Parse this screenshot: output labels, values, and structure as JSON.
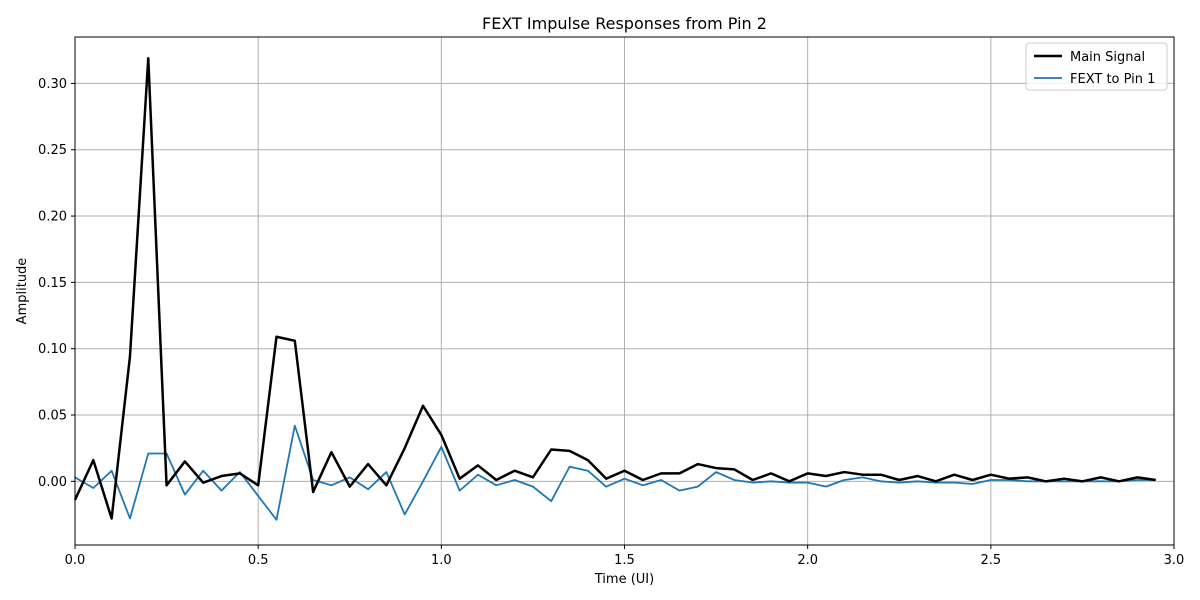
{
  "chart_data": {
    "type": "line",
    "title": "FEXT Impulse Responses from Pin 2",
    "xlabel": "Time (UI)",
    "ylabel": "Amplitude",
    "xlim": [
      0,
      3.0
    ],
    "ylim": [
      -0.048,
      0.335
    ],
    "x_ticks": [
      0.0,
      0.5,
      1.0,
      1.5,
      2.0,
      2.5,
      3.0
    ],
    "x_tick_labels": [
      "0.0",
      "0.5",
      "1.0",
      "1.5",
      "2.0",
      "2.5",
      "3.0"
    ],
    "y_ticks": [
      0.0,
      0.05,
      0.1,
      0.15,
      0.2,
      0.25,
      0.3
    ],
    "y_tick_labels": [
      "0.00",
      "0.05",
      "0.10",
      "0.15",
      "0.20",
      "0.25",
      "0.30"
    ],
    "grid": true,
    "legend_position": "top-right",
    "x": [
      0.0,
      0.05,
      0.1,
      0.15,
      0.2,
      0.25,
      0.3,
      0.35,
      0.4,
      0.45,
      0.5,
      0.55,
      0.6,
      0.65,
      0.7,
      0.75,
      0.8,
      0.85,
      0.9,
      0.95,
      1.0,
      1.05,
      1.1,
      1.15,
      1.2,
      1.25,
      1.3,
      1.35,
      1.4,
      1.45,
      1.5,
      1.55,
      1.6,
      1.65,
      1.7,
      1.75,
      1.8,
      1.85,
      1.9,
      1.95,
      2.0,
      2.05,
      2.1,
      2.15,
      2.2,
      2.25,
      2.3,
      2.35,
      2.4,
      2.45,
      2.5,
      2.55,
      2.6,
      2.65,
      2.7,
      2.75,
      2.8,
      2.85,
      2.9,
      2.95
    ],
    "series": [
      {
        "name": "Main Signal",
        "color": "#000000",
        "values": [
          -0.014,
          0.016,
          -0.028,
          0.094,
          0.319,
          -0.003,
          0.015,
          -0.001,
          0.004,
          0.006,
          -0.003,
          0.109,
          0.106,
          -0.008,
          0.022,
          -0.004,
          0.013,
          -0.003,
          0.025,
          0.057,
          0.035,
          0.002,
          0.012,
          0.001,
          0.008,
          0.003,
          0.024,
          0.023,
          0.016,
          0.002,
          0.008,
          0.001,
          0.006,
          0.006,
          0.013,
          0.01,
          0.009,
          0.001,
          0.006,
          0.0,
          0.006,
          0.004,
          0.007,
          0.005,
          0.005,
          0.001,
          0.004,
          0.0,
          0.005,
          0.001,
          0.005,
          0.002,
          0.003,
          0.0,
          0.002,
          0.0,
          0.003,
          0.0,
          0.003,
          0.001
        ]
      },
      {
        "name": "FEXT to Pin 1",
        "color": "#1f77b4",
        "values": [
          0.003,
          -0.005,
          0.008,
          -0.028,
          0.021,
          0.021,
          -0.01,
          0.008,
          -0.007,
          0.007,
          -0.011,
          -0.029,
          0.042,
          0.001,
          -0.003,
          0.003,
          -0.006,
          0.007,
          -0.025,
          0.0,
          0.026,
          -0.007,
          0.005,
          -0.003,
          0.001,
          -0.004,
          -0.015,
          0.011,
          0.008,
          -0.004,
          0.002,
          -0.003,
          0.001,
          -0.007,
          -0.004,
          0.007,
          0.001,
          -0.001,
          0.0,
          -0.001,
          -0.001,
          -0.004,
          0.001,
          0.003,
          0.0,
          -0.001,
          0.0,
          -0.001,
          -0.001,
          -0.002,
          0.001,
          0.001,
          0.0,
          0.0,
          0.0,
          0.0,
          0.0,
          0.0,
          0.001,
          0.001
        ]
      }
    ]
  }
}
